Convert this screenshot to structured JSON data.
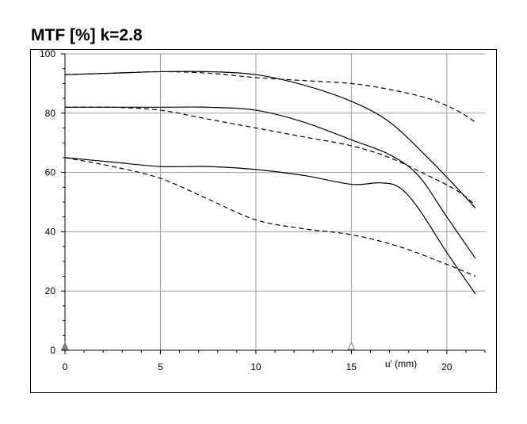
{
  "chart_data": {
    "type": "line",
    "title": "MTF [%] k=2.8",
    "xlabel": "u' (mm)",
    "ylabel": "",
    "xlim": [
      0,
      22
    ],
    "ylim": [
      0,
      100
    ],
    "xticks": [
      0,
      5,
      10,
      15,
      20
    ],
    "yticks": [
      0,
      20,
      40,
      60,
      80,
      100
    ],
    "grid": true,
    "markers": [
      {
        "x": 0,
        "style": "filled-triangle"
      },
      {
        "x": 15,
        "style": "hollow-triangle"
      }
    ],
    "series": [
      {
        "style": "solid",
        "x": [
          0,
          2.5,
          5,
          7.5,
          10,
          12.5,
          15,
          17,
          19,
          20.5,
          21.5
        ],
        "y": [
          93,
          93.5,
          94,
          94,
          93,
          89.5,
          84,
          77,
          65,
          55,
          48
        ]
      },
      {
        "style": "dashed",
        "x": [
          0,
          2.5,
          5,
          7.5,
          10,
          12.5,
          15,
          17,
          19,
          20.5,
          21.5
        ],
        "y": [
          93,
          93.5,
          94,
          93.5,
          92,
          91,
          90,
          88,
          85,
          81,
          77
        ]
      },
      {
        "style": "solid",
        "x": [
          0,
          2.5,
          5,
          7.5,
          10,
          12.5,
          15,
          17,
          18.5,
          20,
          21.5
        ],
        "y": [
          82,
          82,
          82,
          82,
          81,
          77,
          71,
          66,
          59,
          45,
          31
        ]
      },
      {
        "style": "dashed",
        "x": [
          0,
          2.5,
          5,
          7.5,
          10,
          12.5,
          15,
          17,
          19,
          20.5,
          21.5
        ],
        "y": [
          82,
          82,
          81,
          78,
          75,
          72,
          69,
          65,
          59,
          54,
          49
        ]
      },
      {
        "style": "solid",
        "x": [
          0,
          2.5,
          5,
          7.5,
          10,
          12.5,
          15,
          16.5,
          17.5,
          18.5,
          20,
          21.5
        ],
        "y": [
          65,
          63.5,
          62,
          62,
          61,
          59,
          56,
          56.5,
          55,
          48,
          33,
          19
        ]
      },
      {
        "style": "dashed",
        "x": [
          0,
          2.5,
          5,
          7.5,
          10,
          12.5,
          15,
          17.5,
          20,
          21.5
        ],
        "y": [
          65,
          62,
          58,
          51,
          44,
          41,
          39,
          35,
          29,
          25
        ]
      }
    ]
  }
}
